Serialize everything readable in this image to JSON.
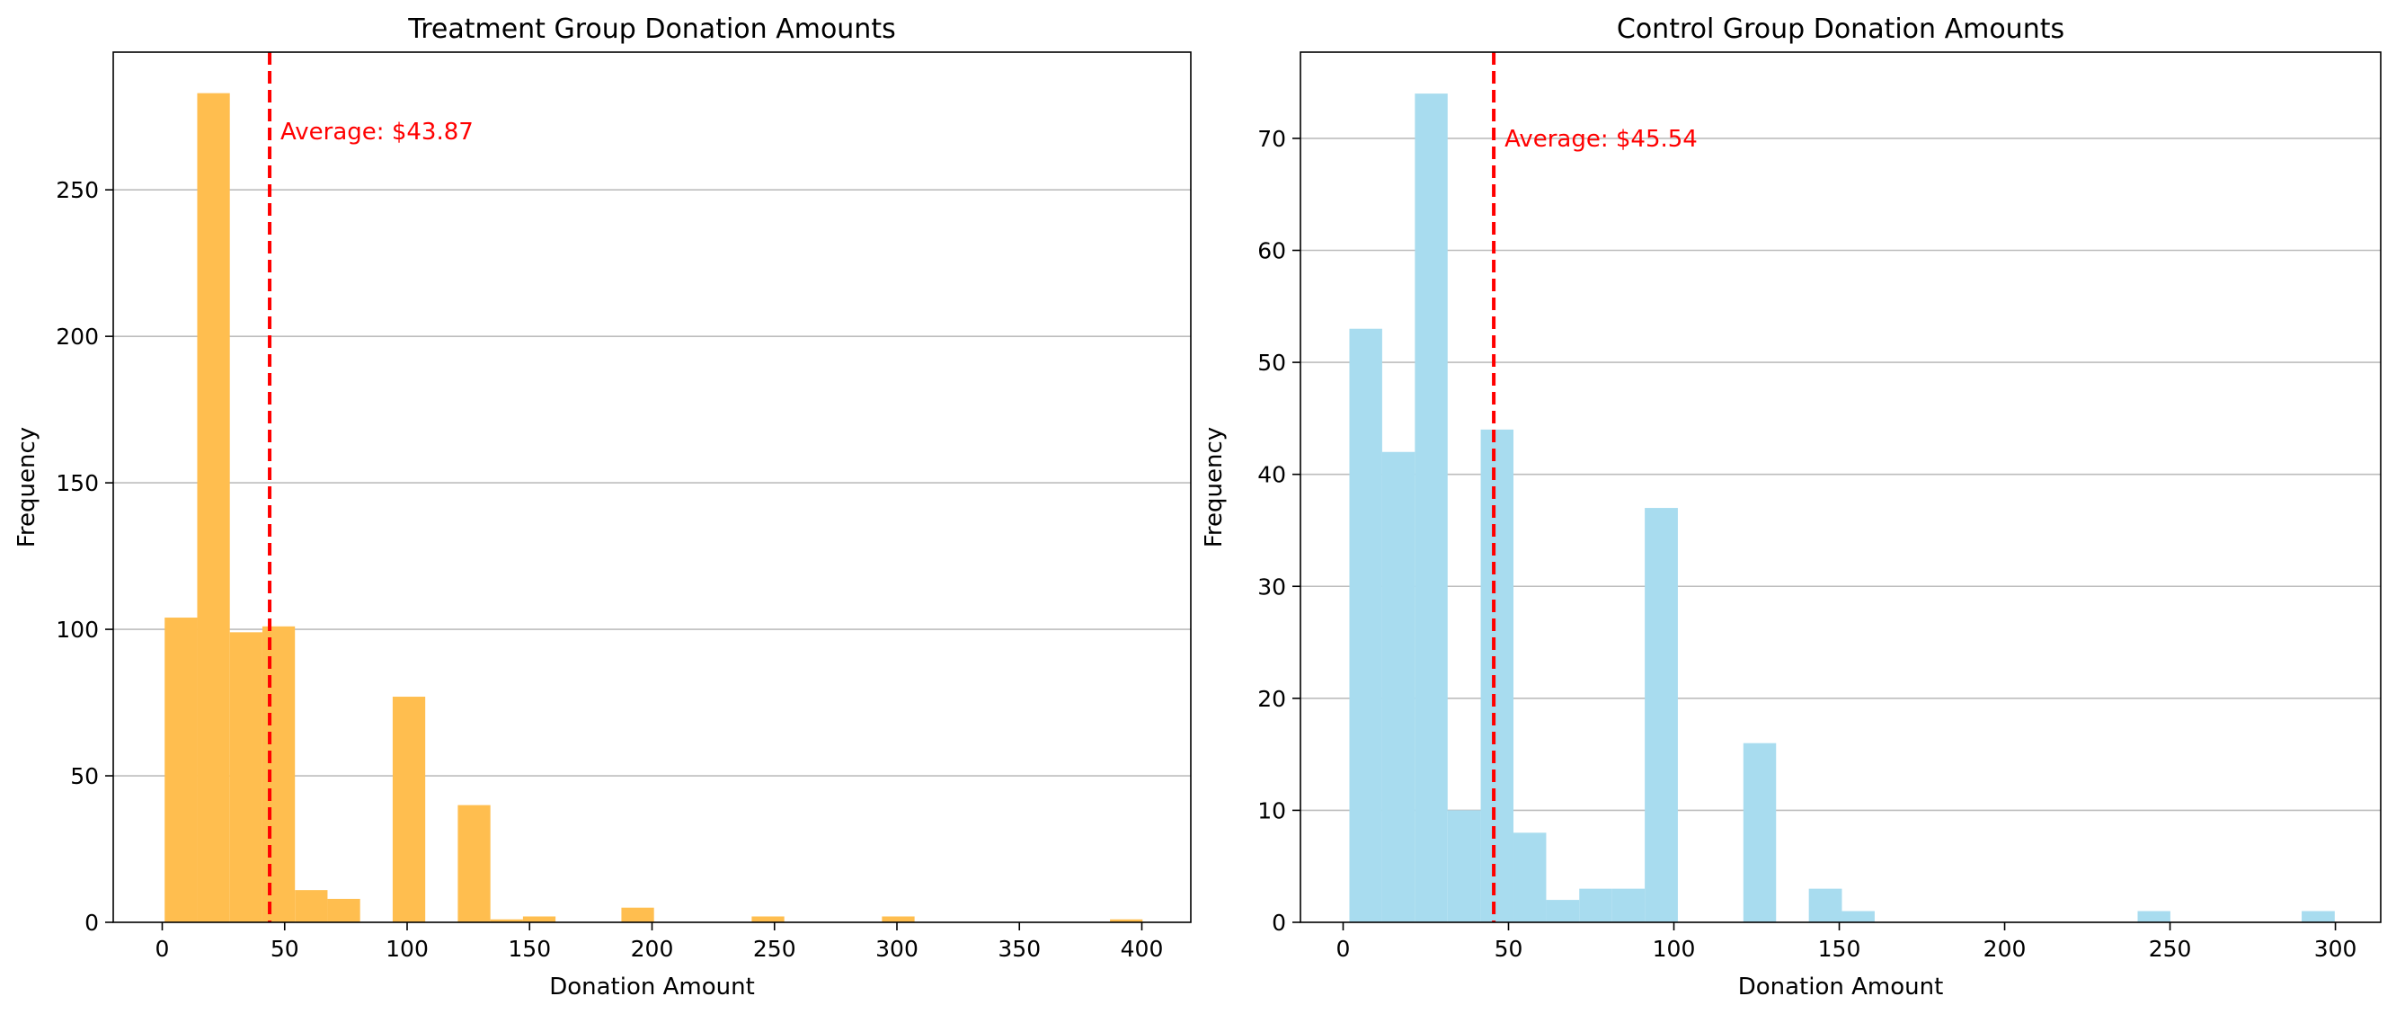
{
  "chart_data": [
    {
      "type": "bar",
      "title": "Treatment Group Donation Amounts",
      "xlabel": "Donation Amount",
      "ylabel": "Frequency",
      "xlim": [
        -20,
        420
      ],
      "ylim": [
        0,
        297
      ],
      "xticks": [
        0,
        50,
        100,
        150,
        200,
        250,
        300,
        350,
        400
      ],
      "yticks": [
        0,
        50,
        100,
        150,
        200,
        250
      ],
      "grid": "y",
      "bar_color": "#ffbe4f",
      "bin_width": 13.3,
      "bins": [
        {
          "x0": 1.0,
          "x1": 14.3,
          "count": 104
        },
        {
          "x0": 14.3,
          "x1": 27.6,
          "count": 283
        },
        {
          "x0": 27.6,
          "x1": 40.9,
          "count": 99
        },
        {
          "x0": 40.9,
          "x1": 54.2,
          "count": 101
        },
        {
          "x0": 54.2,
          "x1": 67.5,
          "count": 11
        },
        {
          "x0": 67.5,
          "x1": 80.8,
          "count": 8
        },
        {
          "x0": 94.1,
          "x1": 107.4,
          "count": 77
        },
        {
          "x0": 120.7,
          "x1": 134.0,
          "count": 40
        },
        {
          "x0": 134.0,
          "x1": 147.3,
          "count": 1
        },
        {
          "x0": 147.3,
          "x1": 160.6,
          "count": 2
        },
        {
          "x0": 187.5,
          "x1": 200.8,
          "count": 5
        },
        {
          "x0": 240.7,
          "x1": 254.0,
          "count": 2
        },
        {
          "x0": 293.9,
          "x1": 307.2,
          "count": 2
        },
        {
          "x0": 387.0,
          "x1": 400.3,
          "count": 1
        }
      ],
      "mean_line": {
        "value": 43.87,
        "color": "#ff0000",
        "label": "Average: $43.87",
        "label_y": 270
      }
    },
    {
      "type": "bar",
      "title": "Control Group Donation Amounts",
      "xlabel": "Donation Amount",
      "ylabel": "Frequency",
      "xlim": [
        -12.9,
        313.7
      ],
      "ylim": [
        0,
        77.7
      ],
      "xticks": [
        0,
        50,
        100,
        150,
        200,
        250,
        300
      ],
      "yticks": [
        0,
        10,
        20,
        30,
        40,
        50,
        60,
        70
      ],
      "grid": "y",
      "bar_color": "#a8dcef",
      "bin_width": 9.93,
      "bins": [
        {
          "x0": 1.9,
          "x1": 11.8,
          "count": 53
        },
        {
          "x0": 11.8,
          "x1": 21.7,
          "count": 42
        },
        {
          "x0": 21.7,
          "x1": 31.6,
          "count": 74
        },
        {
          "x0": 31.6,
          "x1": 41.6,
          "count": 10
        },
        {
          "x0": 41.6,
          "x1": 51.5,
          "count": 44
        },
        {
          "x0": 51.5,
          "x1": 61.4,
          "count": 8
        },
        {
          "x0": 61.4,
          "x1": 71.4,
          "count": 2
        },
        {
          "x0": 71.4,
          "x1": 81.3,
          "count": 3
        },
        {
          "x0": 81.3,
          "x1": 91.2,
          "count": 3
        },
        {
          "x0": 91.2,
          "x1": 101.2,
          "count": 37
        },
        {
          "x0": 121.0,
          "x1": 130.9,
          "count": 16
        },
        {
          "x0": 140.8,
          "x1": 150.8,
          "count": 3
        },
        {
          "x0": 150.8,
          "x1": 160.7,
          "count": 1
        },
        {
          "x0": 240.2,
          "x1": 250.1,
          "count": 1
        },
        {
          "x0": 289.8,
          "x1": 299.8,
          "count": 1
        }
      ],
      "mean_line": {
        "value": 45.54,
        "color": "#ff0000",
        "label": "Average: $45.54",
        "label_y": 70
      }
    }
  ]
}
